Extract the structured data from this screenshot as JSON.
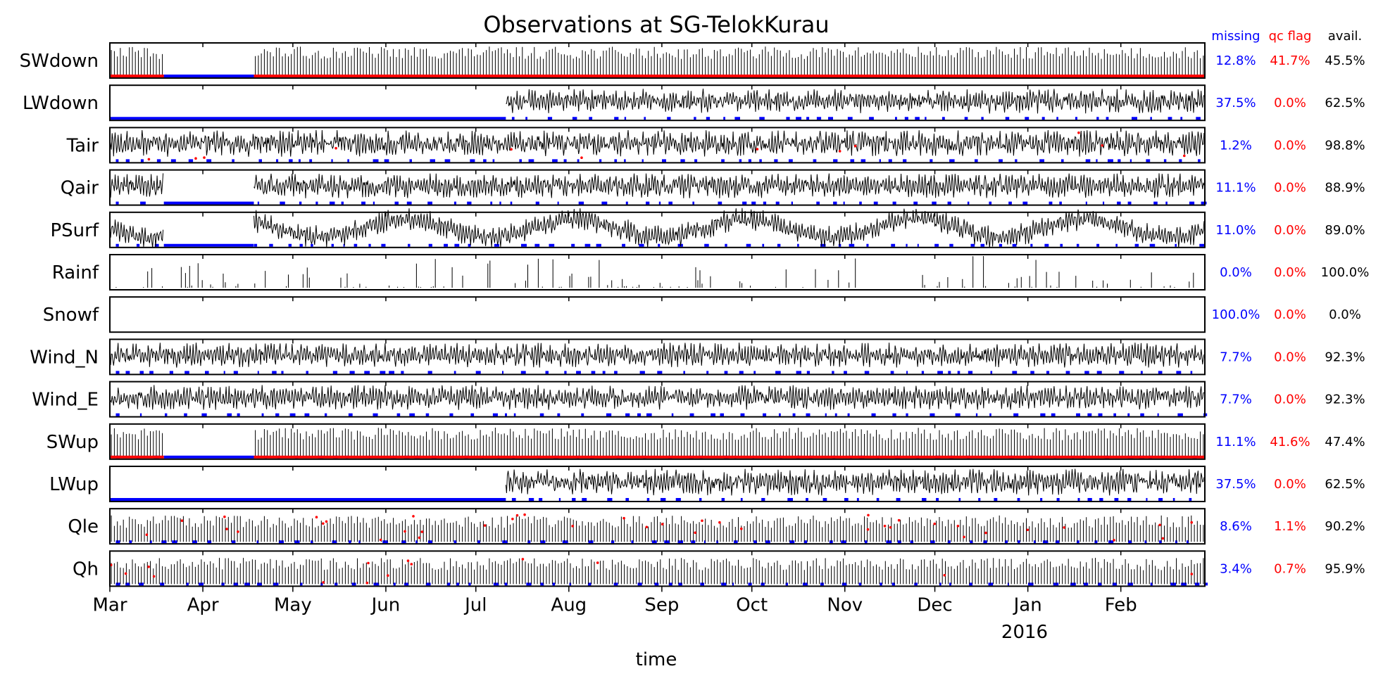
{
  "chart_data": {
    "type": "line",
    "title": "Observations at SG-TelokKurau",
    "xlabel": "time",
    "x_ticks": [
      "Mar",
      "Apr",
      "May",
      "Jun",
      "Jul",
      "Aug",
      "Sep",
      "Oct",
      "Nov",
      "Dec",
      "Jan",
      "Feb"
    ],
    "x_tick_dates": [
      "2015-03-01",
      "2015-04-01",
      "2015-05-01",
      "2015-06-01",
      "2015-07-01",
      "2015-08-01",
      "2015-09-01",
      "2015-10-01",
      "2015-11-01",
      "2015-12-01",
      "2016-01-01",
      "2016-02-01"
    ],
    "x_year_label": "2016",
    "xlim": [
      "2015-03-01",
      "2016-02-29"
    ],
    "columns": {
      "missing": "missing",
      "qc_flag": "qc flag",
      "avail": "avail."
    },
    "colors": {
      "data": "#000000",
      "missing": "#0000ff",
      "qc_flag": "#ff0000",
      "avail": "#000000"
    },
    "series": [
      {
        "name": "SWdown",
        "missing": "12.8%",
        "qc_flag": "41.7%",
        "avail": "45.5%"
      },
      {
        "name": "LWdown",
        "missing": "37.5%",
        "qc_flag": "0.0%",
        "avail": "62.5%"
      },
      {
        "name": "Tair",
        "missing": "1.2%",
        "qc_flag": "0.0%",
        "avail": "98.8%"
      },
      {
        "name": "Qair",
        "missing": "11.1%",
        "qc_flag": "0.0%",
        "avail": "88.9%"
      },
      {
        "name": "PSurf",
        "missing": "11.0%",
        "qc_flag": "0.0%",
        "avail": "89.0%"
      },
      {
        "name": "Rainf",
        "missing": "0.0%",
        "qc_flag": "0.0%",
        "avail": "100.0%"
      },
      {
        "name": "Snowf",
        "missing": "100.0%",
        "qc_flag": "0.0%",
        "avail": "0.0%"
      },
      {
        "name": "Wind_N",
        "missing": "7.7%",
        "qc_flag": "0.0%",
        "avail": "92.3%"
      },
      {
        "name": "Wind_E",
        "missing": "7.7%",
        "qc_flag": "0.0%",
        "avail": "92.3%"
      },
      {
        "name": "SWup",
        "missing": "11.1%",
        "qc_flag": "41.6%",
        "avail": "47.4%"
      },
      {
        "name": "LWup",
        "missing": "37.5%",
        "qc_flag": "0.0%",
        "avail": "62.5%"
      },
      {
        "name": "Qle",
        "missing": "8.6%",
        "qc_flag": "1.1%",
        "avail": "90.2%"
      },
      {
        "name": "Qh",
        "missing": "3.4%",
        "qc_flag": "0.7%",
        "avail": "95.9%"
      }
    ]
  }
}
